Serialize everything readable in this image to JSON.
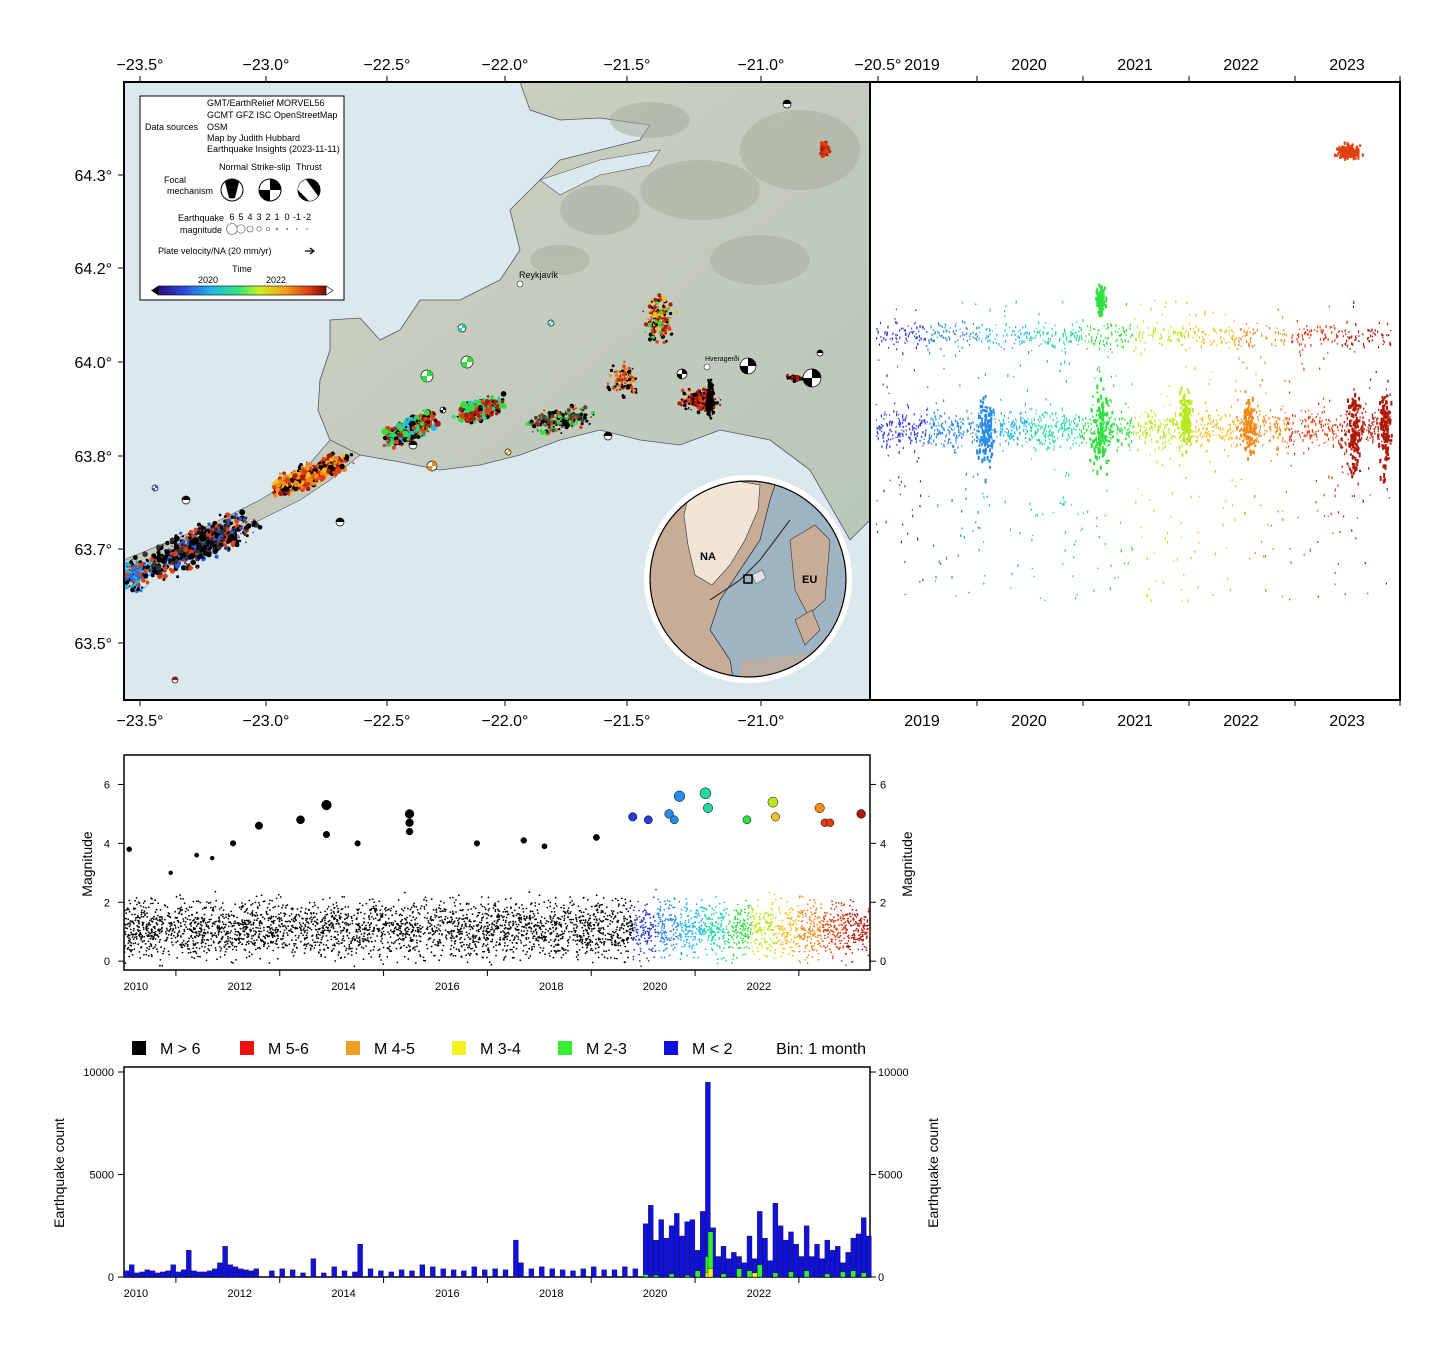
{
  "map": {
    "lon_ticks": [
      "−23.5°",
      "−23.0°",
      "−22.5°",
      "−22.0°",
      "−21.5°",
      "−21.0°",
      "−20.5°"
    ],
    "lon_ticks_bottom": [
      "−23.5°",
      "−23.0°",
      "−22.5°",
      "−22.0°",
      "−21.5°",
      "−21.0°"
    ],
    "lat_ticks": [
      "64.3°",
      "64.2°",
      "64.0°",
      "63.8°",
      "63.7°",
      "63.5°"
    ],
    "places": {
      "reykjavik": "Reykjavík",
      "hveragerdi": "Hveragerði"
    },
    "inset": {
      "plate_a": "NA",
      "plate_b": "EU"
    },
    "legend": {
      "data_sources_label": "Data sources",
      "data_sources_lines": [
        "GMT/EarthRelief MORVEL56",
        "GCMT GFZ ISC OpenStreetMap",
        "OSM",
        "Map by Judith Hubbard",
        "Earthquake Insights (2023-11-11)"
      ],
      "focal_label_1": "Focal",
      "focal_label_2": "mechanism",
      "mech_normal": "Normal",
      "mech_strike_slip": "Strike-slip",
      "mech_thrust": "Thrust",
      "eq_label_1": "Earthquake",
      "eq_label_2": "magnitude",
      "mag_values": [
        "6",
        "5",
        "4",
        "3",
        "2",
        "1",
        "0",
        "-1",
        "-2"
      ],
      "plate_velocity": "Plate velocity/NA (20 mm/yr)",
      "time_label": "Time",
      "time_ticks": [
        "2020",
        "2022"
      ]
    }
  },
  "time_panel": {
    "year_ticks": [
      "2019",
      "2020",
      "2021",
      "2022",
      "2023"
    ]
  },
  "magnitude_chart": {
    "ylabel": "Magnitude",
    "y_ticks": [
      "0",
      "2",
      "4",
      "6"
    ],
    "x_ticks": [
      "2010",
      "2012",
      "2014",
      "2016",
      "2018",
      "2020",
      "2022"
    ]
  },
  "histogram": {
    "legend": [
      {
        "label": "M > 6",
        "color": "#000000"
      },
      {
        "label": "M 5-6",
        "color": "#ee1111"
      },
      {
        "label": "M 4-5",
        "color": "#f0a020"
      },
      {
        "label": "M 3-4",
        "color": "#f5f020"
      },
      {
        "label": "M 2-3",
        "color": "#33ee33"
      },
      {
        "label": "M < 2",
        "color": "#1111dd"
      }
    ],
    "bin_label": "Bin: 1 month",
    "ylabel": "Earthquake count",
    "y_ticks": [
      "0",
      "5000",
      "10000"
    ],
    "x_ticks": [
      "2010",
      "2012",
      "2014",
      "2016",
      "2018",
      "2020",
      "2022"
    ]
  },
  "chart_data": [
    {
      "type": "bar",
      "title": "",
      "xlabel": "",
      "ylabel": "Earthquake count",
      "xlim": [
        2009.5,
        2023.87
      ],
      "ylim": [
        0,
        10000
      ],
      "bin": "1 month",
      "series": [
        {
          "name": "M < 2",
          "color": "#1111dd",
          "x": [
            2009.5,
            2009.6,
            2009.7,
            2009.8,
            2009.9,
            2010.0,
            2010.1,
            2010.2,
            2010.3,
            2010.4,
            2010.5,
            2010.6,
            2010.7,
            2010.8,
            2010.9,
            2011.0,
            2011.1,
            2011.2,
            2011.3,
            2011.4,
            2011.5,
            2011.6,
            2011.7,
            2011.8,
            2011.9,
            2012.0,
            2012.3,
            2012.5,
            2012.7,
            2012.9,
            2013.1,
            2013.3,
            2013.5,
            2013.7,
            2013.9,
            2014.0,
            2014.2,
            2014.4,
            2014.6,
            2014.8,
            2015.0,
            2015.2,
            2015.4,
            2015.6,
            2015.8,
            2016.0,
            2016.2,
            2016.4,
            2016.6,
            2016.8,
            2017.0,
            2017.1,
            2017.3,
            2017.5,
            2017.7,
            2017.9,
            2018.1,
            2018.3,
            2018.5,
            2018.7,
            2018.9,
            2019.1,
            2019.3,
            2019.5,
            2019.6,
            2019.7,
            2019.8,
            2019.9,
            2020.0,
            2020.1,
            2020.2,
            2020.3,
            2020.4,
            2020.5,
            2020.6,
            2020.7,
            2020.8,
            2020.9,
            2021.0,
            2021.1,
            2021.2,
            2021.3,
            2021.4,
            2021.5,
            2021.6,
            2021.7,
            2021.8,
            2021.9,
            2022.0,
            2022.1,
            2022.2,
            2022.3,
            2022.4,
            2022.5,
            2022.6,
            2022.7,
            2022.8,
            2022.9,
            2023.0,
            2023.1,
            2023.2,
            2023.3,
            2023.4,
            2023.5,
            2023.6,
            2023.7,
            2023.8
          ],
          "values": [
            300,
            600,
            200,
            250,
            350,
            300,
            200,
            250,
            300,
            600,
            250,
            350,
            1300,
            300,
            250,
            250,
            300,
            400,
            700,
            1500,
            600,
            500,
            400,
            350,
            300,
            400,
            300,
            400,
            350,
            200,
            900,
            200,
            500,
            300,
            250,
            1600,
            400,
            300,
            250,
            350,
            300,
            600,
            500,
            400,
            350,
            300,
            500,
            350,
            400,
            350,
            1800,
            700,
            400,
            500,
            400,
            350,
            300,
            400,
            500,
            350,
            350,
            500,
            400,
            2600,
            3500,
            1800,
            2800,
            1900,
            2500,
            3100,
            2000,
            2700,
            2800,
            1300,
            3200,
            9500,
            2400,
            1000,
            1500,
            900,
            1200,
            1000,
            700,
            2000,
            900,
            3200,
            1900,
            800,
            3600,
            2500,
            1800,
            2200,
            1600,
            1000,
            2500,
            1000,
            1600,
            900,
            1800,
            1300,
            1500,
            700,
            1200,
            1900,
            2100,
            2900,
            2000
          ]
        },
        {
          "name": "M 2-3",
          "color": "#33ee33",
          "x": [
            2019.5,
            2019.7,
            2020.0,
            2020.3,
            2020.5,
            2020.7,
            2020.75,
            2021.0,
            2021.3,
            2021.5,
            2021.7,
            2022.0,
            2022.3,
            2022.6,
            2023.0,
            2023.3,
            2023.5,
            2023.7
          ],
          "values": [
            120,
            90,
            150,
            80,
            300,
            1000,
            2200,
            150,
            400,
            300,
            600,
            200,
            250,
            300,
            150,
            250,
            300,
            200
          ]
        },
        {
          "name": "M 3-4",
          "color": "#f5f020",
          "x": [
            2020.7,
            2020.75,
            2021.6
          ],
          "values": [
            200,
            400,
            200
          ]
        }
      ]
    },
    {
      "type": "scatter",
      "title": "",
      "xlabel": "",
      "ylabel": "Magnitude",
      "xlim": [
        2009.5,
        2023.87
      ],
      "ylim": [
        -0.3,
        7.0
      ],
      "note_points": "Largest events (year, magnitude)",
      "points": [
        {
          "x": 2009.6,
          "y": 3.8
        },
        {
          "x": 2010.4,
          "y": 3.0
        },
        {
          "x": 2010.9,
          "y": 3.6
        },
        {
          "x": 2011.2,
          "y": 3.5
        },
        {
          "x": 2011.6,
          "y": 4.0
        },
        {
          "x": 2012.1,
          "y": 4.6
        },
        {
          "x": 2012.9,
          "y": 4.8
        },
        {
          "x": 2013.4,
          "y": 5.3
        },
        {
          "x": 2013.4,
          "y": 4.3
        },
        {
          "x": 2014.0,
          "y": 4.0
        },
        {
          "x": 2015.0,
          "y": 5.0
        },
        {
          "x": 2015.0,
          "y": 4.7
        },
        {
          "x": 2015.0,
          "y": 4.4
        },
        {
          "x": 2016.3,
          "y": 4.0
        },
        {
          "x": 2017.2,
          "y": 4.1
        },
        {
          "x": 2017.6,
          "y": 3.9
        },
        {
          "x": 2018.6,
          "y": 4.2
        },
        {
          "x": 2019.3,
          "y": 4.9
        },
        {
          "x": 2019.6,
          "y": 4.8
        },
        {
          "x": 2020.0,
          "y": 5.0
        },
        {
          "x": 2020.1,
          "y": 4.8
        },
        {
          "x": 2020.2,
          "y": 5.6
        },
        {
          "x": 2020.7,
          "y": 5.7
        },
        {
          "x": 2020.75,
          "y": 5.2
        },
        {
          "x": 2021.5,
          "y": 4.8
        },
        {
          "x": 2022.0,
          "y": 5.4
        },
        {
          "x": 2022.05,
          "y": 4.9
        },
        {
          "x": 2022.9,
          "y": 5.2
        },
        {
          "x": 2023.0,
          "y": 4.7
        },
        {
          "x": 2023.1,
          "y": 4.7
        },
        {
          "x": 2023.7,
          "y": 5.0
        }
      ]
    }
  ]
}
